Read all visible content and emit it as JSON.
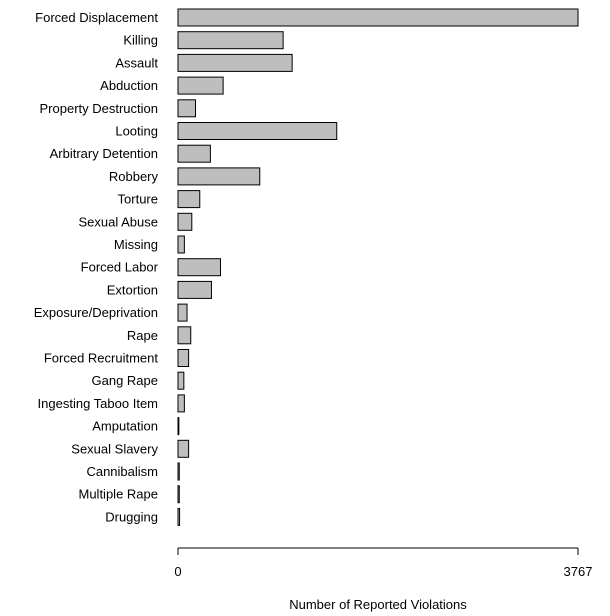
{
  "chart_data": {
    "type": "bar",
    "orientation": "horizontal",
    "categories": [
      "Forced Displacement",
      "Killing",
      "Assault",
      "Abduction",
      "Property Destruction",
      "Looting",
      "Arbitrary Detention",
      "Robbery",
      "Torture",
      "Sexual Abuse",
      "Missing",
      "Forced Labor",
      "Extortion",
      "Exposure/Deprivation",
      "Rape",
      "Forced Recruitment",
      "Gang Rape",
      "Ingesting Taboo Item",
      "Amputation",
      "Sexual Slavery",
      "Cannibalism",
      "Multiple Rape",
      "Drugging"
    ],
    "values": [
      3767,
      990,
      1075,
      425,
      165,
      1495,
      305,
      770,
      205,
      130,
      60,
      400,
      315,
      85,
      120,
      100,
      55,
      60,
      8,
      100,
      12,
      12,
      15
    ],
    "xlabel": "Number of Reported Violations",
    "ylabel": "",
    "xlim": [
      0,
      3767
    ],
    "xticks": [
      "0",
      "3767"
    ],
    "bar_color": "#bebebe",
    "bar_edge_color": "#000000",
    "grid": false
  }
}
